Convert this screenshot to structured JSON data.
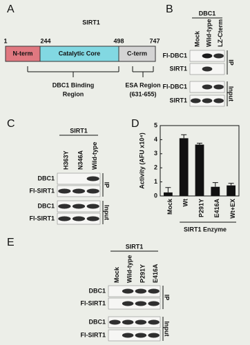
{
  "panel_a": {
    "label": "A",
    "title": "SIRT1",
    "positions": [
      1,
      244,
      498,
      747
    ],
    "domains": [
      "N-term",
      "Catalytic Core",
      "C-term"
    ],
    "regions": [
      [
        "DBC1 Binding",
        "Region"
      ],
      [
        "ESA Region",
        "(631-655)"
      ]
    ]
  },
  "panel_b": {
    "label": "B",
    "group": "DBC1",
    "lanes": [
      "Mock",
      "Wild-type",
      "LZ-Cterm"
    ],
    "ip_rows": [
      "Fl-DBC1",
      "SIRT1"
    ],
    "ip_label": "IP",
    "input_rows": [
      "Fl-DBC1",
      "SIRT1"
    ],
    "input_label": "Input"
  },
  "panel_c": {
    "label": "C",
    "group": "SIRT1",
    "lanes": [
      "H363Y",
      "N346A",
      "Wild-type"
    ],
    "ip_rows": [
      "DBC1",
      "Fl-SIRT1"
    ],
    "ip_label": "IP",
    "input_rows": [
      "DBC1",
      "Fl-SIRT1"
    ],
    "input_label": "Input"
  },
  "panel_d": {
    "label": "D"
  },
  "chart_data": {
    "type": "bar",
    "y_label": "Activity (AFU x10⁴)",
    "x_label": "SIRT1 Enzyme",
    "categories": [
      "Mock",
      "Wt",
      "P291Y",
      "E416A",
      "Wt+EX"
    ],
    "values": [
      0.25,
      4.1,
      3.65,
      0.65,
      0.75
    ],
    "errors": [
      0.35,
      0.25,
      0.1,
      0.3,
      0.15
    ],
    "color": "#111111",
    "ylim": [
      0,
      5
    ],
    "yticks": [
      0,
      1,
      2,
      3,
      4,
      5
    ]
  },
  "panel_e": {
    "label": "E",
    "group": "SIRT1",
    "lanes": [
      "Mock",
      "Wild-type",
      "P291Y",
      "E416A"
    ],
    "ip_rows": [
      "DBC1",
      "Fl-SIRT1"
    ],
    "ip_label": "IP",
    "input_rows": [
      "DBC1",
      "Fl-SIRT1"
    ],
    "input_label": "Input"
  }
}
